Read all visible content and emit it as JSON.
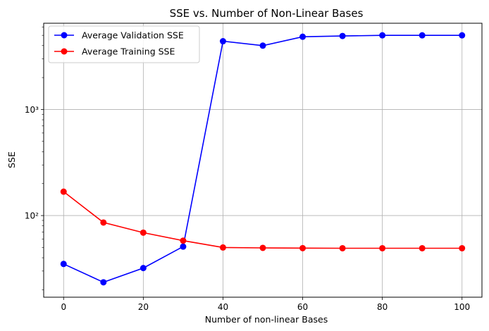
{
  "chart_data": {
    "type": "line",
    "title": "SSE vs. Number of Non-Linear Bases",
    "xlabel": "Number of non-linear Bases",
    "ylabel": "SSE",
    "x": [
      0,
      10,
      20,
      30,
      40,
      50,
      60,
      70,
      80,
      90,
      100
    ],
    "xlim": [
      -5,
      105
    ],
    "ylim": [
      17,
      6500
    ],
    "yscale": "log",
    "x_ticks": [
      0,
      20,
      40,
      60,
      80,
      100
    ],
    "x_tick_labels": [
      "0",
      "20",
      "40",
      "60",
      "80",
      "100"
    ],
    "y_ticks": [
      100,
      1000
    ],
    "y_tick_labels": [
      "10²",
      "10³"
    ],
    "grid": true,
    "legend_position": "top-left",
    "series": [
      {
        "name": "Average Validation SSE",
        "color": "#0000ff",
        "values": [
          35,
          23.5,
          32,
          51,
          4400,
          4000,
          4850,
          4930,
          5000,
          5000,
          5000
        ]
      },
      {
        "name": "Average Training SSE",
        "color": "#ff0000",
        "values": [
          168,
          86,
          69,
          58,
          50,
          49.6,
          49.3,
          49.2,
          49.2,
          49.2,
          49.2
        ]
      }
    ]
  }
}
